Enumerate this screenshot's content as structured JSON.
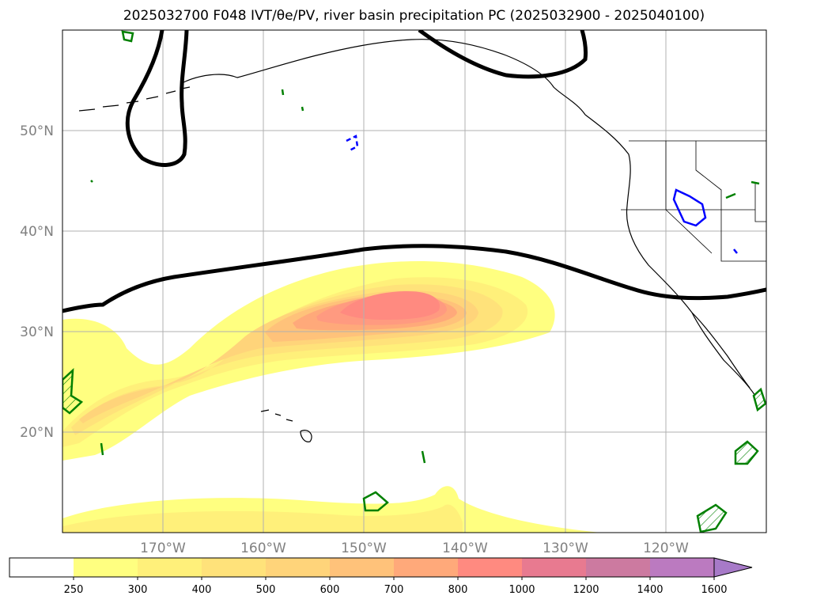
{
  "title": "2025032700 F048 IVT/θe/PV, river basin precipitation PC (2025032900 - 2025040100)",
  "map": {
    "extent": {
      "lon_min": -180,
      "lon_max": -110,
      "lat_min": 10,
      "lat_max": 60
    },
    "lat_labels": [
      "50°N",
      "40°N",
      "30°N",
      "20°N"
    ],
    "lat_values": [
      50,
      40,
      30,
      20
    ],
    "lon_labels": [
      "170°W",
      "160°W",
      "150°W",
      "140°W",
      "130°W",
      "120°W"
    ],
    "lon_values": [
      -170,
      -160,
      -150,
      -140,
      -130,
      -120
    ],
    "grid": true,
    "contour_colors": {
      "theta_e": "#000000",
      "river_basin": "#008000",
      "pv": "#0000ff"
    }
  },
  "colorbar": {
    "ticks": [
      "250",
      "300",
      "400",
      "500",
      "600",
      "700",
      "800",
      "1000",
      "1200",
      "1400",
      "1600"
    ],
    "colors": [
      "#ffffff",
      "#ffff80",
      "#fff07a",
      "#ffe27a",
      "#ffd47a",
      "#ffc27a",
      "#ffa97a",
      "#ff8a80",
      "#e87a90",
      "#cc7aa0",
      "#bb7ac0",
      "#a77ac8"
    ],
    "extend": "max"
  }
}
